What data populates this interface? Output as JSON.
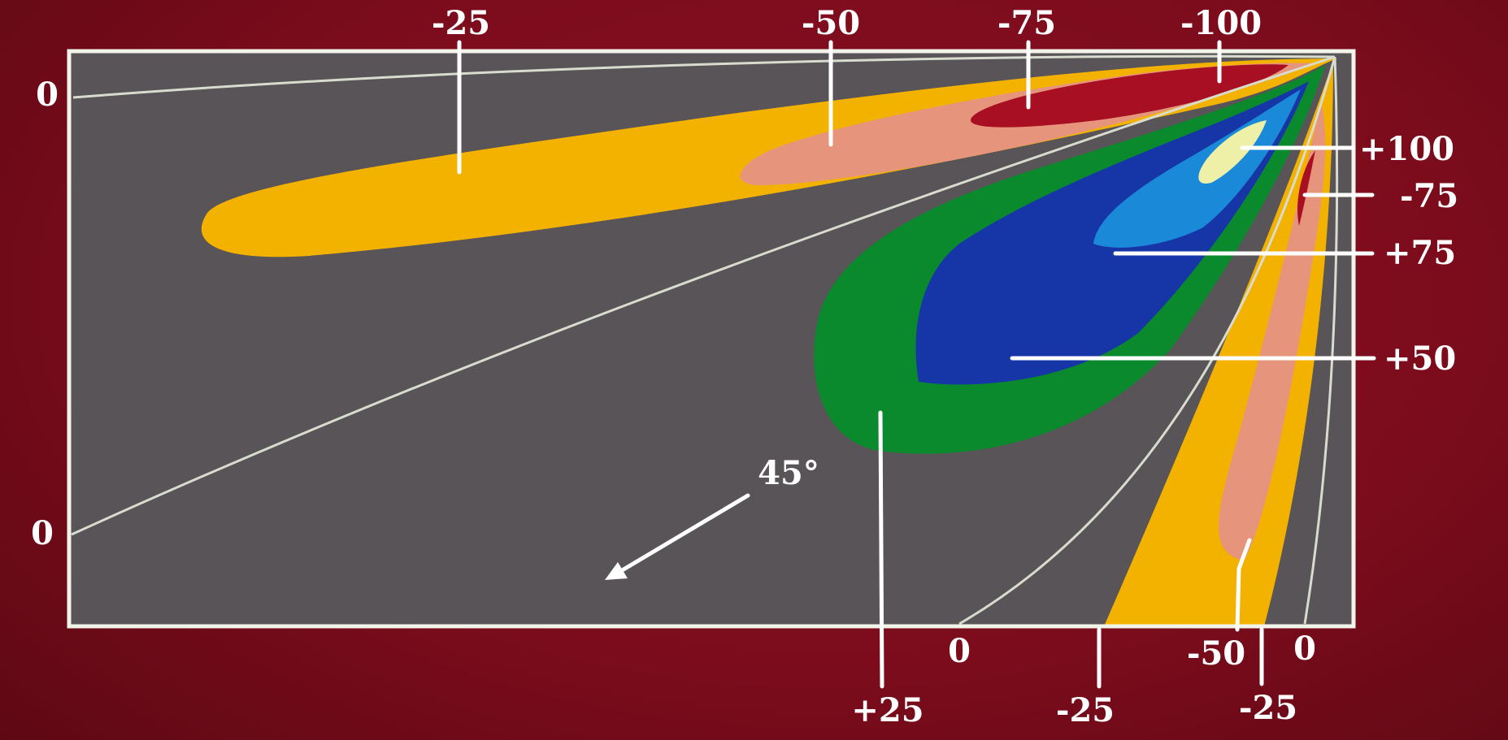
{
  "diagram": {
    "colors": {
      "background": "#7c0c1c",
      "panel": "#585457",
      "frame": "#f2f4ea",
      "contour_line": "#d8dccf",
      "yellow": "#f3b200",
      "salmon": "#e6957c",
      "dark_red": "#a80f22",
      "green": "#0a8a2c",
      "blue": "#1636a8",
      "light_blue": "#1a8ad8",
      "pale_yellow": "#eef0a8"
    },
    "labels": {
      "top_neg25": "-25",
      "top_neg50": "-50",
      "top_neg75": "-75",
      "top_neg100": "-100",
      "left_zero_top": "0",
      "left_zero_bottom": "0",
      "right_pos100": "+100",
      "right_neg75": "-75",
      "right_pos75": "+75",
      "right_pos50": "+50",
      "bottom_pos25": "+25",
      "bottom_zero_a": "0",
      "bottom_neg25_a": "-25",
      "bottom_neg50": "-50",
      "bottom_zero_b": "0",
      "bottom_neg25_b": "-25",
      "angle": "45°"
    }
  }
}
